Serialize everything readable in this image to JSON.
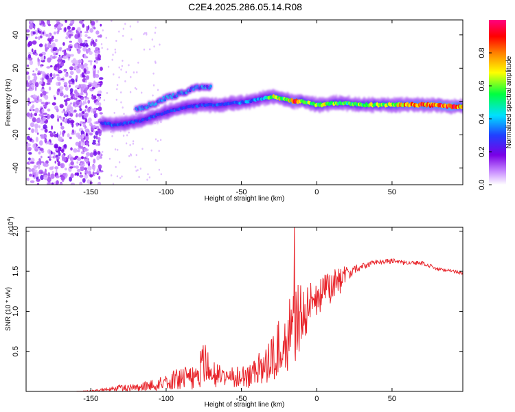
{
  "title": "C2E4.2025.286.05.14.R08",
  "chart_data": [
    {
      "type": "heatmap",
      "xlabel": "Height of straight line (km)",
      "ylabel": "Frequency (Hz)",
      "xlim": [
        -193,
        97
      ],
      "ylim": [
        -50,
        49
      ],
      "x_ticks": [
        -150,
        -100,
        -50,
        0,
        50
      ],
      "x_tick_labels": [
        "-150",
        "-100",
        "-50",
        "0",
        "50"
      ],
      "y_ticks": [
        -40,
        -20,
        0,
        20,
        40
      ],
      "y_tick_labels": [
        "-40",
        "-20",
        "0",
        "20",
        "40"
      ],
      "colorbar": {
        "label": "Normalized spectral amplitude",
        "range": [
          0,
          1
        ],
        "ticks": [
          0.0,
          0.2,
          0.4,
          0.6,
          0.8
        ],
        "tick_labels": [
          "0.0",
          "0.2",
          "0.4",
          "0.6",
          "0.8"
        ],
        "colors": [
          "#ffffff",
          "#c88cff",
          "#7a00e6",
          "#2040ff",
          "#00e0ff",
          "#00ff40",
          "#ffff00",
          "#ff8000",
          "#ff0000",
          "#ff0080"
        ]
      },
      "noise_region_x": [
        -193,
        -143
      ],
      "ridge": {
        "x": [
          -143,
          -135,
          -125,
          -115,
          -105,
          -95,
          -85,
          -75,
          -65,
          -55,
          -45,
          -35,
          -28,
          -20,
          -15,
          -10,
          -5,
          0,
          5,
          10,
          20,
          30,
          40,
          50,
          60,
          70,
          80,
          90,
          97
        ],
        "freq": [
          -13,
          -14,
          -13,
          -11,
          -8,
          -5,
          -3,
          -2,
          -2,
          -1,
          0,
          2,
          3,
          1,
          0,
          0,
          -1,
          -2,
          -2,
          -1,
          -1,
          -2,
          -2,
          -2,
          -2,
          -2,
          -2,
          -3,
          -3
        ],
        "amplitude": [
          0.3,
          0.35,
          0.3,
          0.3,
          0.3,
          0.3,
          0.3,
          0.3,
          0.32,
          0.35,
          0.35,
          0.4,
          0.75,
          0.55,
          0.9,
          0.6,
          0.65,
          0.6,
          0.7,
          0.6,
          0.55,
          0.6,
          0.65,
          0.7,
          0.8,
          0.85,
          0.85,
          0.95,
          0.7
        ]
      },
      "upper_branch": {
        "x": [
          -120,
          -110,
          -100,
          -90,
          -80,
          -70
        ],
        "freq": [
          -5,
          -2,
          2,
          5,
          8,
          9
        ]
      }
    },
    {
      "type": "line",
      "xlabel": "Height of straight line (km)",
      "ylabel": "SNR (10 * v/v)",
      "y_multiplier": "(x10",
      "y_multiplier_exponent": "4",
      "y_multiplier_close": ")",
      "xlim": [
        -193,
        97
      ],
      "ylim": [
        0,
        2.05
      ],
      "x_ticks": [
        -150,
        -100,
        -50,
        0,
        50
      ],
      "x_tick_labels": [
        "-150",
        "-100",
        "-50",
        "0",
        "50"
      ],
      "y_ticks": [
        0.5,
        1.0,
        1.5,
        2.0
      ],
      "y_tick_labels": [
        "0.5",
        "1.0",
        "1.5",
        "2.0"
      ],
      "color": "#e8242a",
      "envelope": {
        "x": [
          -193,
          -160,
          -148,
          -140,
          -130,
          -120,
          -110,
          -100,
          -90,
          -80,
          -75,
          -70,
          -60,
          -50,
          -45,
          -40,
          -35,
          -30,
          -27,
          -22,
          -18,
          -15,
          -12,
          -10,
          -5,
          0,
          5,
          10,
          15,
          20,
          25,
          30,
          40,
          50,
          60,
          70,
          80,
          90,
          97
        ],
        "mean": [
          0.0,
          0.0,
          0.01,
          0.02,
          0.04,
          0.05,
          0.08,
          0.12,
          0.17,
          0.2,
          0.35,
          0.22,
          0.18,
          0.17,
          0.2,
          0.25,
          0.3,
          0.4,
          0.5,
          0.62,
          0.72,
          0.88,
          0.9,
          0.98,
          1.05,
          1.15,
          1.25,
          1.3,
          1.38,
          1.48,
          1.52,
          1.56,
          1.62,
          1.63,
          1.6,
          1.6,
          1.53,
          1.5,
          1.48
        ],
        "jitter": [
          0.0,
          0.0,
          0.01,
          0.02,
          0.04,
          0.05,
          0.07,
          0.1,
          0.14,
          0.18,
          0.28,
          0.18,
          0.14,
          0.14,
          0.16,
          0.2,
          0.25,
          0.3,
          0.35,
          0.4,
          0.45,
          0.55,
          0.45,
          0.35,
          0.3,
          0.25,
          0.22,
          0.2,
          0.18,
          0.1,
          0.06,
          0.04,
          0.03,
          0.03,
          0.03,
          0.03,
          0.02,
          0.02,
          0.02
        ]
      },
      "peak": {
        "x": -15,
        "y": 2.05
      }
    }
  ]
}
